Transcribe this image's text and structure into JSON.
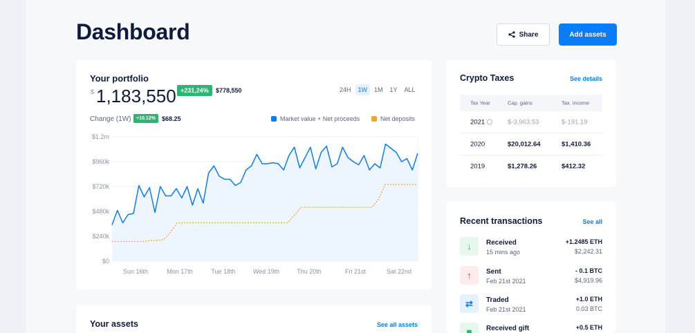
{
  "header": {
    "title": "Dashboard",
    "share_label": "Share",
    "add_label": "Add assets"
  },
  "portfolio": {
    "title": "Your portfolio",
    "currency": "$",
    "value": "1,183,550",
    "gain_pct": "+231,24%",
    "gain_amt": "$778,550",
    "ranges": [
      "24H",
      "1W",
      "1M",
      "1Y",
      "ALL"
    ],
    "active_range": "1W",
    "change_label": "Change (1W)",
    "change_pct": "+10.12%",
    "change_amt": "$68.25",
    "legend": [
      {
        "label": "Market value + Net proceeds",
        "color": "#0a7cf6"
      },
      {
        "label": "Net deposits",
        "color": "#f5a623"
      }
    ]
  },
  "chart_data": {
    "type": "line",
    "x_ticks": [
      "Sun 16th",
      "Mon 17th",
      "Tue 18th",
      "Wed 19th",
      "Thu 20th",
      "Fri 21st",
      "Sat 22nd"
    ],
    "y_ticks": [
      "$1.2m",
      "$960k",
      "$720k",
      "$480k",
      "$240k",
      "$0"
    ],
    "ylim": [
      0,
      1200000
    ],
    "series": [
      {
        "name": "Market value + Net proceeds",
        "color": "#0a7cf6",
        "values": [
          350000,
          490000,
          370000,
          450000,
          460000,
          730000,
          620000,
          710000,
          470000,
          720000,
          630000,
          630000,
          700000,
          610000,
          720000,
          540000,
          700000,
          560000,
          850000,
          920000,
          820000,
          790000,
          790000,
          730000,
          760000,
          880000,
          920000,
          1030000,
          940000,
          940000,
          950000,
          940000,
          880000,
          1020000,
          1100000,
          900000,
          1000000,
          1100000,
          890000,
          1050000,
          1110000,
          910000,
          940000,
          1100000,
          1000000,
          960000,
          930000,
          1020000,
          880000,
          940000,
          900000,
          1130000,
          1090000,
          1050000,
          960000,
          990000,
          880000,
          1040000
        ]
      },
      {
        "name": "Net deposits",
        "color": "#f5a623",
        "values": [
          190000,
          190000,
          190000,
          190000,
          190000,
          190000,
          200000,
          200000,
          210000,
          280000,
          370000,
          370000,
          370000,
          370000,
          370000,
          370000,
          370000,
          370000,
          370000,
          370000,
          370000,
          370000,
          370000,
          370000,
          370000,
          370000,
          370000,
          370000,
          440000,
          520000,
          520000,
          520000,
          520000,
          520000,
          520000,
          520000,
          520000,
          520000,
          520000,
          520000,
          520000,
          600000,
          740000,
          740000,
          740000,
          740000,
          740000,
          740000
        ]
      }
    ]
  },
  "taxes": {
    "title": "Crypto Taxes",
    "link": "See details",
    "headers": [
      "Tax Year",
      "Cap. gains",
      "Tax. income"
    ],
    "rows": [
      {
        "year": "2021",
        "gains": "$-3,963.53",
        "income": "$-191.19",
        "muted": true
      },
      {
        "year": "2020",
        "gains": "$20,012.64",
        "income": "$1,410.36",
        "muted": false
      },
      {
        "year": "2019",
        "gains": "$1,278.26",
        "income": "$412.32",
        "muted": false
      }
    ]
  },
  "transactions": {
    "title": "Recent transactions",
    "link": "See all",
    "items": [
      {
        "name": "Received",
        "time": "15 mins ago",
        "amount": "+1.2485 ETH",
        "usd": "$2,242.31",
        "icon": "arrow-down-icon",
        "glyph": "↓",
        "bg": "#e6f7ee",
        "fg": "#2bb673"
      },
      {
        "name": "Sent",
        "time": "Feb 21st 2021",
        "amount": "- 0.1 BTC",
        "usd": "$4,919.96",
        "icon": "arrow-up-icon",
        "glyph": "↑",
        "bg": "#fdecec",
        "fg": "#e53935"
      },
      {
        "name": "Traded",
        "time": "Feb 21st 2021",
        "amount": "+1.0 ETH",
        "usd": "0.03 BTC",
        "icon": "swap-icon",
        "glyph": "⇄",
        "bg": "#e6f1fe",
        "fg": "#0a7cf6"
      },
      {
        "name": "Received gift",
        "time": "",
        "amount": "+0.5 ETH",
        "usd": "",
        "icon": "gift-icon",
        "glyph": "▆",
        "bg": "#e6f7ee",
        "fg": "#2bb673"
      }
    ]
  },
  "assets": {
    "title": "Your assets",
    "link": "See all assets"
  }
}
